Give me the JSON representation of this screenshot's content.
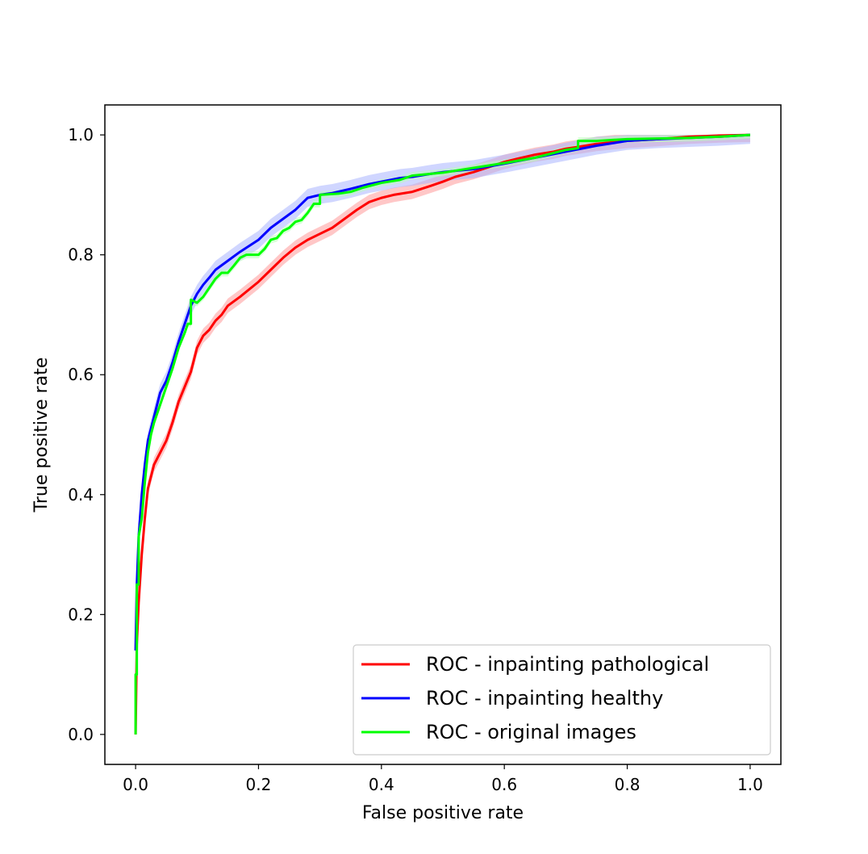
{
  "chart_data": {
    "type": "line",
    "title": "",
    "xlabel": "False positive rate",
    "ylabel": "True positive rate",
    "xlim": [
      -0.05,
      1.05
    ],
    "ylim": [
      -0.05,
      1.05
    ],
    "xticks": [
      0.0,
      0.2,
      0.4,
      0.6,
      0.8,
      1.0
    ],
    "xtick_labels": [
      "0.0",
      "0.2",
      "0.4",
      "0.6",
      "0.8",
      "1.0"
    ],
    "yticks": [
      0.0,
      0.2,
      0.4,
      0.6,
      0.8,
      1.0
    ],
    "ytick_labels": [
      "0.0",
      "0.2",
      "0.4",
      "0.6",
      "0.8",
      "1.0"
    ],
    "grid": false,
    "legend_position": "bottom-right",
    "series": [
      {
        "name": "ROC - inpainting pathological",
        "color": "#ff0000",
        "band_color": "#ff9999",
        "band_halfwidth": 0.012,
        "points": [
          [
            0.0,
            0.0
          ],
          [
            0.002,
            0.15
          ],
          [
            0.005,
            0.22
          ],
          [
            0.01,
            0.3
          ],
          [
            0.015,
            0.36
          ],
          [
            0.02,
            0.41
          ],
          [
            0.03,
            0.45
          ],
          [
            0.04,
            0.47
          ],
          [
            0.05,
            0.49
          ],
          [
            0.06,
            0.52
          ],
          [
            0.07,
            0.555
          ],
          [
            0.08,
            0.58
          ],
          [
            0.09,
            0.605
          ],
          [
            0.1,
            0.645
          ],
          [
            0.11,
            0.665
          ],
          [
            0.12,
            0.675
          ],
          [
            0.13,
            0.69
          ],
          [
            0.14,
            0.7
          ],
          [
            0.15,
            0.715
          ],
          [
            0.17,
            0.73
          ],
          [
            0.2,
            0.755
          ],
          [
            0.22,
            0.775
          ],
          [
            0.24,
            0.795
          ],
          [
            0.26,
            0.812
          ],
          [
            0.28,
            0.825
          ],
          [
            0.3,
            0.835
          ],
          [
            0.32,
            0.845
          ],
          [
            0.34,
            0.86
          ],
          [
            0.36,
            0.875
          ],
          [
            0.38,
            0.888
          ],
          [
            0.4,
            0.895
          ],
          [
            0.42,
            0.9
          ],
          [
            0.45,
            0.905
          ],
          [
            0.48,
            0.915
          ],
          [
            0.5,
            0.922
          ],
          [
            0.52,
            0.93
          ],
          [
            0.55,
            0.938
          ],
          [
            0.58,
            0.948
          ],
          [
            0.6,
            0.955
          ],
          [
            0.62,
            0.96
          ],
          [
            0.65,
            0.967
          ],
          [
            0.68,
            0.972
          ],
          [
            0.7,
            0.977
          ],
          [
            0.72,
            0.98
          ],
          [
            0.75,
            0.985
          ],
          [
            0.78,
            0.988
          ],
          [
            0.8,
            0.99
          ],
          [
            0.85,
            0.993
          ],
          [
            0.9,
            0.997
          ],
          [
            0.95,
            0.999
          ],
          [
            1.0,
            1.0
          ]
        ]
      },
      {
        "name": "ROC - inpainting healthy",
        "color": "#0000ff",
        "band_color": "#aab4ff",
        "band_halfwidth": 0.015,
        "points": [
          [
            0.0,
            0.14
          ],
          [
            0.002,
            0.25
          ],
          [
            0.005,
            0.33
          ],
          [
            0.01,
            0.4
          ],
          [
            0.015,
            0.45
          ],
          [
            0.02,
            0.49
          ],
          [
            0.03,
            0.53
          ],
          [
            0.04,
            0.57
          ],
          [
            0.05,
            0.59
          ],
          [
            0.06,
            0.62
          ],
          [
            0.07,
            0.655
          ],
          [
            0.08,
            0.685
          ],
          [
            0.09,
            0.715
          ],
          [
            0.1,
            0.735
          ],
          [
            0.11,
            0.75
          ],
          [
            0.12,
            0.762
          ],
          [
            0.13,
            0.775
          ],
          [
            0.15,
            0.79
          ],
          [
            0.17,
            0.805
          ],
          [
            0.2,
            0.825
          ],
          [
            0.22,
            0.845
          ],
          [
            0.24,
            0.86
          ],
          [
            0.26,
            0.875
          ],
          [
            0.28,
            0.895
          ],
          [
            0.3,
            0.9
          ],
          [
            0.32,
            0.903
          ],
          [
            0.35,
            0.91
          ],
          [
            0.38,
            0.918
          ],
          [
            0.4,
            0.922
          ],
          [
            0.43,
            0.928
          ],
          [
            0.45,
            0.93
          ],
          [
            0.48,
            0.935
          ],
          [
            0.5,
            0.938
          ],
          [
            0.55,
            0.943
          ],
          [
            0.6,
            0.952
          ],
          [
            0.65,
            0.962
          ],
          [
            0.7,
            0.972
          ],
          [
            0.75,
            0.982
          ],
          [
            0.8,
            0.99
          ],
          [
            0.85,
            0.993
          ],
          [
            0.9,
            0.995
          ],
          [
            0.95,
            0.997
          ],
          [
            1.0,
            1.0
          ]
        ]
      },
      {
        "name": "ROC - original images",
        "color": "#00ff00",
        "band_color": "#b9ffb9",
        "band_halfwidth": 0.006,
        "points": [
          [
            0.0,
            0.0
          ],
          [
            0.0,
            0.1
          ],
          [
            0.002,
            0.1
          ],
          [
            0.002,
            0.25
          ],
          [
            0.005,
            0.25
          ],
          [
            0.005,
            0.33
          ],
          [
            0.01,
            0.36
          ],
          [
            0.015,
            0.42
          ],
          [
            0.02,
            0.47
          ],
          [
            0.025,
            0.5
          ],
          [
            0.03,
            0.52
          ],
          [
            0.04,
            0.55
          ],
          [
            0.05,
            0.58
          ],
          [
            0.06,
            0.61
          ],
          [
            0.07,
            0.645
          ],
          [
            0.08,
            0.67
          ],
          [
            0.085,
            0.685
          ],
          [
            0.09,
            0.685
          ],
          [
            0.09,
            0.725
          ],
          [
            0.1,
            0.72
          ],
          [
            0.11,
            0.73
          ],
          [
            0.12,
            0.745
          ],
          [
            0.13,
            0.76
          ],
          [
            0.14,
            0.77
          ],
          [
            0.15,
            0.77
          ],
          [
            0.16,
            0.782
          ],
          [
            0.17,
            0.795
          ],
          [
            0.18,
            0.8
          ],
          [
            0.2,
            0.8
          ],
          [
            0.21,
            0.81
          ],
          [
            0.22,
            0.825
          ],
          [
            0.23,
            0.828
          ],
          [
            0.24,
            0.84
          ],
          [
            0.25,
            0.845
          ],
          [
            0.26,
            0.855
          ],
          [
            0.27,
            0.858
          ],
          [
            0.28,
            0.87
          ],
          [
            0.29,
            0.885
          ],
          [
            0.3,
            0.885
          ],
          [
            0.3,
            0.9
          ],
          [
            0.33,
            0.902
          ],
          [
            0.35,
            0.905
          ],
          [
            0.37,
            0.912
          ],
          [
            0.4,
            0.92
          ],
          [
            0.43,
            0.925
          ],
          [
            0.45,
            0.932
          ],
          [
            0.5,
            0.937
          ],
          [
            0.55,
            0.945
          ],
          [
            0.6,
            0.953
          ],
          [
            0.65,
            0.962
          ],
          [
            0.7,
            0.975
          ],
          [
            0.72,
            0.978
          ],
          [
            0.72,
            0.99
          ],
          [
            0.75,
            0.99
          ],
          [
            0.8,
            0.993
          ],
          [
            0.9,
            0.995
          ],
          [
            0.95,
            0.997
          ],
          [
            1.0,
            1.0
          ]
        ]
      }
    ]
  }
}
